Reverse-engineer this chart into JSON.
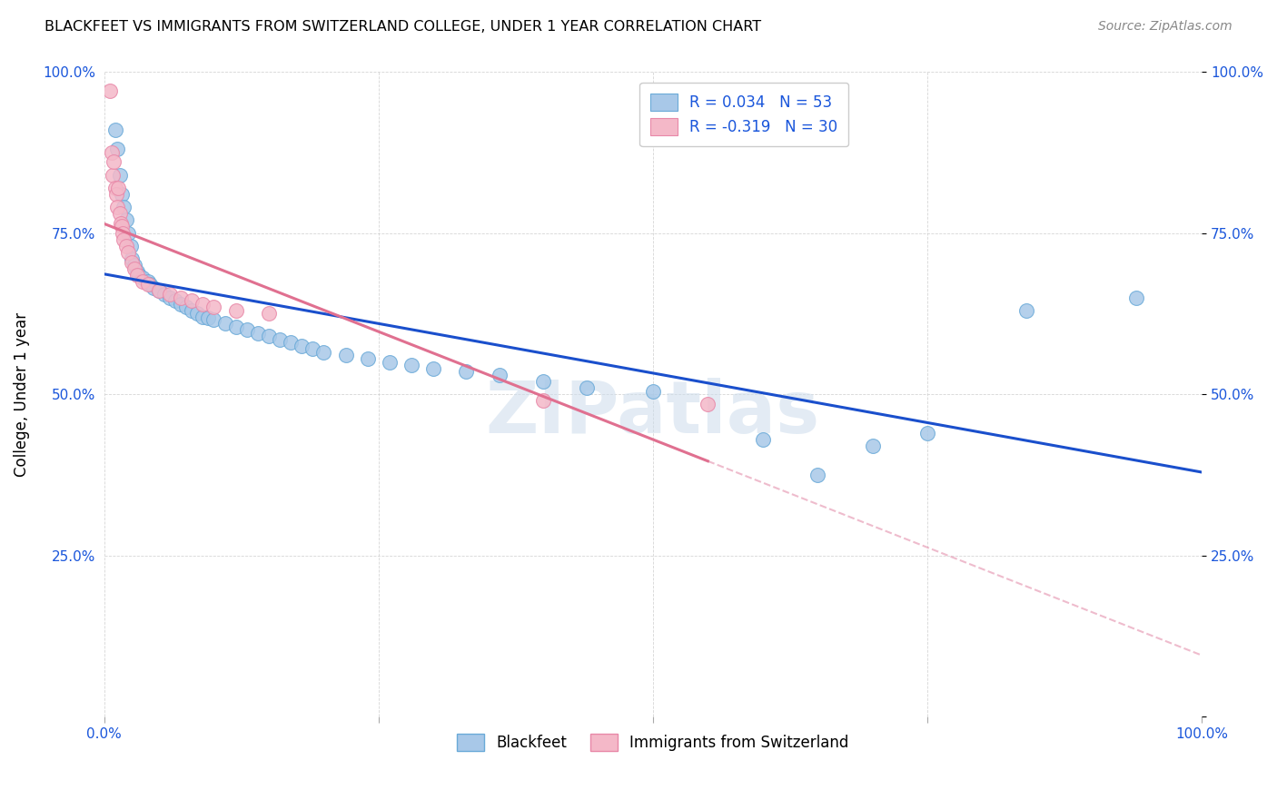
{
  "title": "BLACKFEET VS IMMIGRANTS FROM SWITZERLAND COLLEGE, UNDER 1 YEAR CORRELATION CHART",
  "source": "Source: ZipAtlas.com",
  "ylabel": "College, Under 1 year",
  "legend_blue_r": "R = 0.034",
  "legend_blue_n": "N = 53",
  "legend_pink_r": "R = -0.319",
  "legend_pink_n": "N = 30",
  "blue_color": "#a8c8e8",
  "pink_color": "#f4b8c8",
  "blue_line_color": "#1a4fcc",
  "pink_line_color": "#e07090",
  "pink_dash_color": "#e8a0b8",
  "background_color": "#ffffff",
  "watermark": "ZIPatlas",
  "blue_points": [
    [
      1.0,
      91.0
    ],
    [
      1.2,
      88.0
    ],
    [
      1.4,
      84.0
    ],
    [
      1.6,
      81.0
    ],
    [
      1.8,
      79.0
    ],
    [
      2.0,
      77.0
    ],
    [
      2.2,
      75.0
    ],
    [
      2.4,
      73.0
    ],
    [
      2.5,
      71.0
    ],
    [
      2.8,
      70.0
    ],
    [
      3.0,
      69.0
    ],
    [
      3.2,
      68.5
    ],
    [
      3.5,
      68.0
    ],
    [
      4.0,
      67.5
    ],
    [
      4.2,
      67.0
    ],
    [
      4.5,
      66.5
    ],
    [
      5.0,
      66.0
    ],
    [
      5.5,
      65.5
    ],
    [
      6.0,
      65.0
    ],
    [
      6.5,
      64.5
    ],
    [
      7.0,
      64.0
    ],
    [
      7.5,
      63.5
    ],
    [
      8.0,
      63.0
    ],
    [
      8.5,
      62.5
    ],
    [
      9.0,
      62.0
    ],
    [
      9.5,
      61.8
    ],
    [
      10.0,
      61.5
    ],
    [
      11.0,
      61.0
    ],
    [
      12.0,
      60.5
    ],
    [
      13.0,
      60.0
    ],
    [
      14.0,
      59.5
    ],
    [
      15.0,
      59.0
    ],
    [
      16.0,
      58.5
    ],
    [
      17.0,
      58.0
    ],
    [
      18.0,
      57.5
    ],
    [
      19.0,
      57.0
    ],
    [
      20.0,
      56.5
    ],
    [
      22.0,
      56.0
    ],
    [
      24.0,
      55.5
    ],
    [
      26.0,
      55.0
    ],
    [
      28.0,
      54.5
    ],
    [
      30.0,
      54.0
    ],
    [
      33.0,
      53.5
    ],
    [
      36.0,
      53.0
    ],
    [
      40.0,
      52.0
    ],
    [
      44.0,
      51.0
    ],
    [
      50.0,
      50.5
    ],
    [
      60.0,
      43.0
    ],
    [
      65.0,
      37.5
    ],
    [
      70.0,
      42.0
    ],
    [
      75.0,
      44.0
    ],
    [
      84.0,
      63.0
    ],
    [
      94.0,
      65.0
    ]
  ],
  "pink_points": [
    [
      0.5,
      97.0
    ],
    [
      0.7,
      87.5
    ],
    [
      0.8,
      84.0
    ],
    [
      0.9,
      86.0
    ],
    [
      1.0,
      82.0
    ],
    [
      1.1,
      81.0
    ],
    [
      1.2,
      79.0
    ],
    [
      1.3,
      82.0
    ],
    [
      1.4,
      78.0
    ],
    [
      1.5,
      76.5
    ],
    [
      1.6,
      76.0
    ],
    [
      1.7,
      75.0
    ],
    [
      1.8,
      74.0
    ],
    [
      2.0,
      73.0
    ],
    [
      2.2,
      72.0
    ],
    [
      2.5,
      70.5
    ],
    [
      2.8,
      69.5
    ],
    [
      3.0,
      68.5
    ],
    [
      3.5,
      67.5
    ],
    [
      4.0,
      67.0
    ],
    [
      5.0,
      66.0
    ],
    [
      6.0,
      65.5
    ],
    [
      7.0,
      65.0
    ],
    [
      8.0,
      64.5
    ],
    [
      9.0,
      64.0
    ],
    [
      10.0,
      63.5
    ],
    [
      12.0,
      63.0
    ],
    [
      15.0,
      62.5
    ],
    [
      40.0,
      49.0
    ],
    [
      55.0,
      48.5
    ]
  ],
  "blue_reg": [
    0.0,
    100.0
  ],
  "pink_reg": [
    0.0,
    55.0
  ],
  "pink_dash_range": [
    40.0,
    100.0
  ]
}
